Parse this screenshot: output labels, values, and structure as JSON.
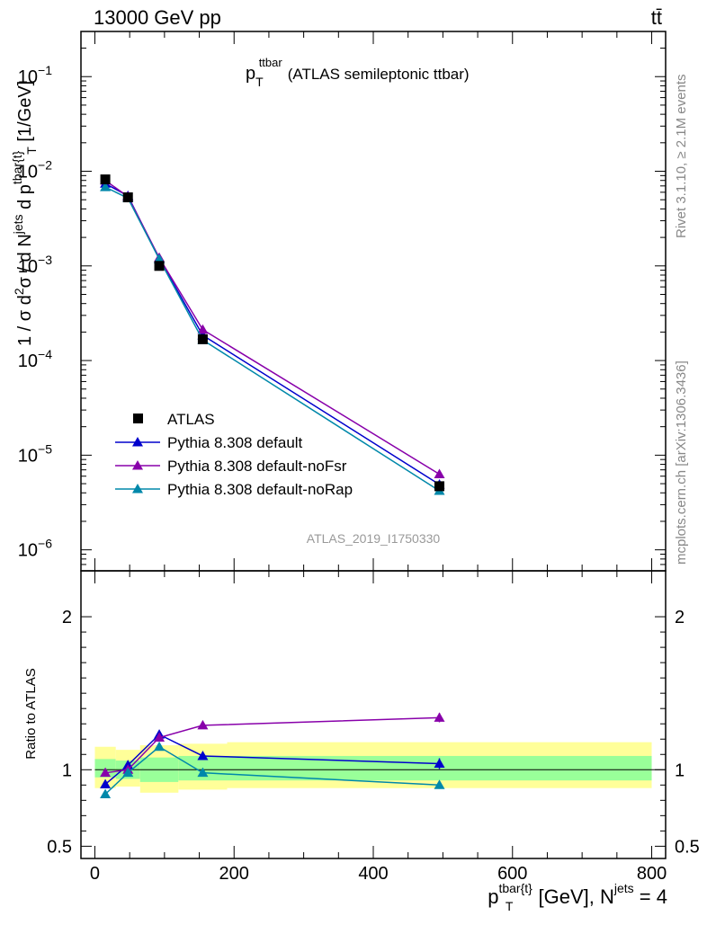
{
  "header": {
    "energy_label": "13000 GeV pp",
    "process_label": "tt̄"
  },
  "side_labels": {
    "rivet": "Rivet 3.1.10, ≥ 2.1M events",
    "mcplots": "mcplots.cern.ch [arXiv:1306.3436]"
  },
  "main_plot": {
    "title_main": "p",
    "title_sub": "T",
    "title_sup": "ttbar",
    "title_rest": "(ATLAS semileptonic ttbar)",
    "ylabel": "1 / σ d²σ / d N^jets d p^tbar{t}_T [1/GeV]",
    "watermark": "ATLAS_2019_I1750330",
    "ylim": [
      6e-07,
      0.3
    ],
    "log_y": true,
    "y_ticks": [
      {
        "label": "10",
        "exp": "−6"
      },
      {
        "label": "10",
        "exp": "−5"
      },
      {
        "label": "10",
        "exp": "−4"
      },
      {
        "label": "10",
        "exp": "−3"
      },
      {
        "label": "10",
        "exp": "−2"
      },
      {
        "label": "10",
        "exp": "−1"
      }
    ]
  },
  "ratio_plot": {
    "ylabel": "Ratio to ATLAS",
    "ylim": [
      0.42,
      2.3
    ],
    "y_tick_labels": [
      "0.5",
      "1",
      "2"
    ]
  },
  "x_axis": {
    "label_main": "p",
    "label_sup": "tbar{t}",
    "label_sub": "T",
    "label_rest": "[GeV], N",
    "label_jets": "jets",
    "label_end": "= 4",
    "xlim": [
      -20,
      820
    ],
    "tick_labels": [
      "0",
      "200",
      "400",
      "600",
      "800"
    ]
  },
  "chart_data": {
    "type": "line",
    "x": [
      15,
      47.5,
      92.5,
      155,
      495
    ],
    "bins": [
      [
        0,
        30
      ],
      [
        30,
        65
      ],
      [
        65,
        120
      ],
      [
        120,
        190
      ],
      [
        190,
        800
      ]
    ],
    "data_series": {
      "name": "ATLAS",
      "color": "#000000",
      "values": [
        0.0082,
        0.0053,
        0.001,
        0.000168,
        4.7e-06
      ]
    },
    "ratio_bands": {
      "stat_sys": [
        [
          0.88,
          1.15
        ],
        [
          0.89,
          1.13
        ],
        [
          0.85,
          1.16
        ],
        [
          0.87,
          1.17
        ],
        [
          0.88,
          1.18
        ]
      ],
      "stat": [
        [
          0.95,
          1.07
        ],
        [
          0.94,
          1.06
        ],
        [
          0.92,
          1.08
        ],
        [
          0.93,
          1.09
        ],
        [
          0.93,
          1.09
        ]
      ],
      "outer_color": "#ffff99",
      "inner_color": "#99ff99"
    },
    "series": [
      {
        "name": "Pythia 8.308 default",
        "color": "#0000cc",
        "values": [
          0.0074,
          0.0055,
          0.00119,
          0.000185,
          4.9e-06
        ],
        "ratio": [
          0.905,
          1.03,
          1.23,
          1.09,
          1.04
        ],
        "ratio_err": [
          0.01,
          0.01,
          0.01,
          0.01,
          0.035
        ]
      },
      {
        "name": "Pythia 8.308 default-noFsr",
        "color": "#8800aa",
        "values": [
          0.008,
          0.0054,
          0.00122,
          0.000212,
          6.3e-06
        ],
        "ratio": [
          0.98,
          1.0,
          1.21,
          1.29,
          1.34
        ],
        "ratio_err": [
          0.01,
          0.01,
          0.01,
          0.01,
          0.03
        ]
      },
      {
        "name": "Pythia 8.308 default-noRap",
        "color": "#0088aa",
        "values": [
          0.0068,
          0.0052,
          0.00118,
          0.000165,
          4.2e-06
        ],
        "ratio": [
          0.84,
          0.98,
          1.15,
          0.98,
          0.9
        ],
        "ratio_err": [
          0.01,
          0.01,
          0.01,
          0.01,
          0.025
        ]
      }
    ]
  }
}
